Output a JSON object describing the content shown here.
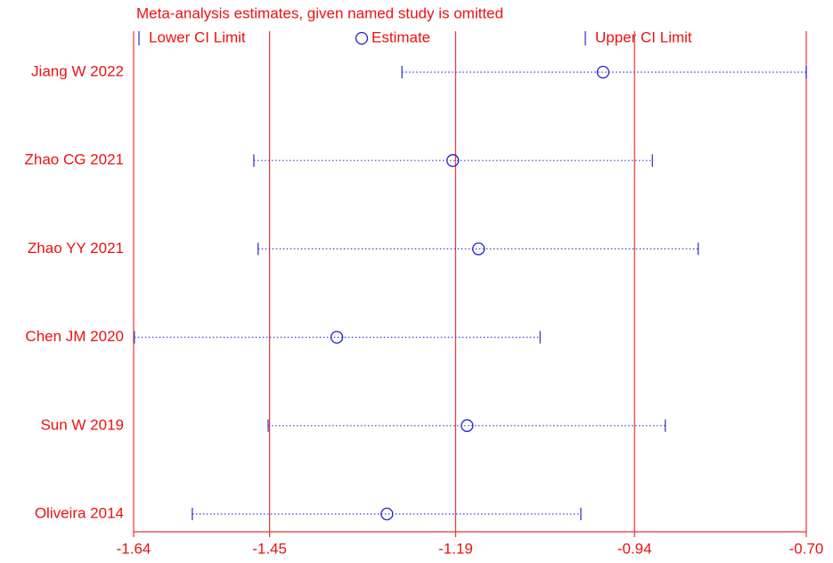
{
  "chart_data": {
    "type": "forest",
    "title": "Meta-analysis estimates, given named study is omitted",
    "categories": [
      "Jiang  W 2022",
      "Zhao CG 2021",
      "Zhao YY 2021",
      "Chen JM 2020",
      "Sun W 2019",
      "Oliveira 2014"
    ],
    "series": [
      {
        "name": "Lower CI Limit",
        "color": "#3a3ad8",
        "values": [
          -1.265,
          -1.472,
          -1.466,
          -1.639,
          -1.452,
          -1.558
        ]
      },
      {
        "name": "Estimate",
        "color": "#2222cc",
        "values": [
          -0.984,
          -1.194,
          -1.158,
          -1.356,
          -1.174,
          -1.286
        ]
      },
      {
        "name": "Upper CI Limit",
        "color": "#3a3ad8",
        "values": [
          -0.7,
          -0.915,
          -0.851,
          -1.072,
          -0.897,
          -1.015
        ]
      }
    ],
    "xlim": [
      -1.64,
      -0.7
    ],
    "xticks": [
      -1.64,
      -1.45,
      -1.19,
      -0.94,
      {
        "value": -0.7,
        "label": "-0.70"
      }
    ],
    "grid": true
  }
}
